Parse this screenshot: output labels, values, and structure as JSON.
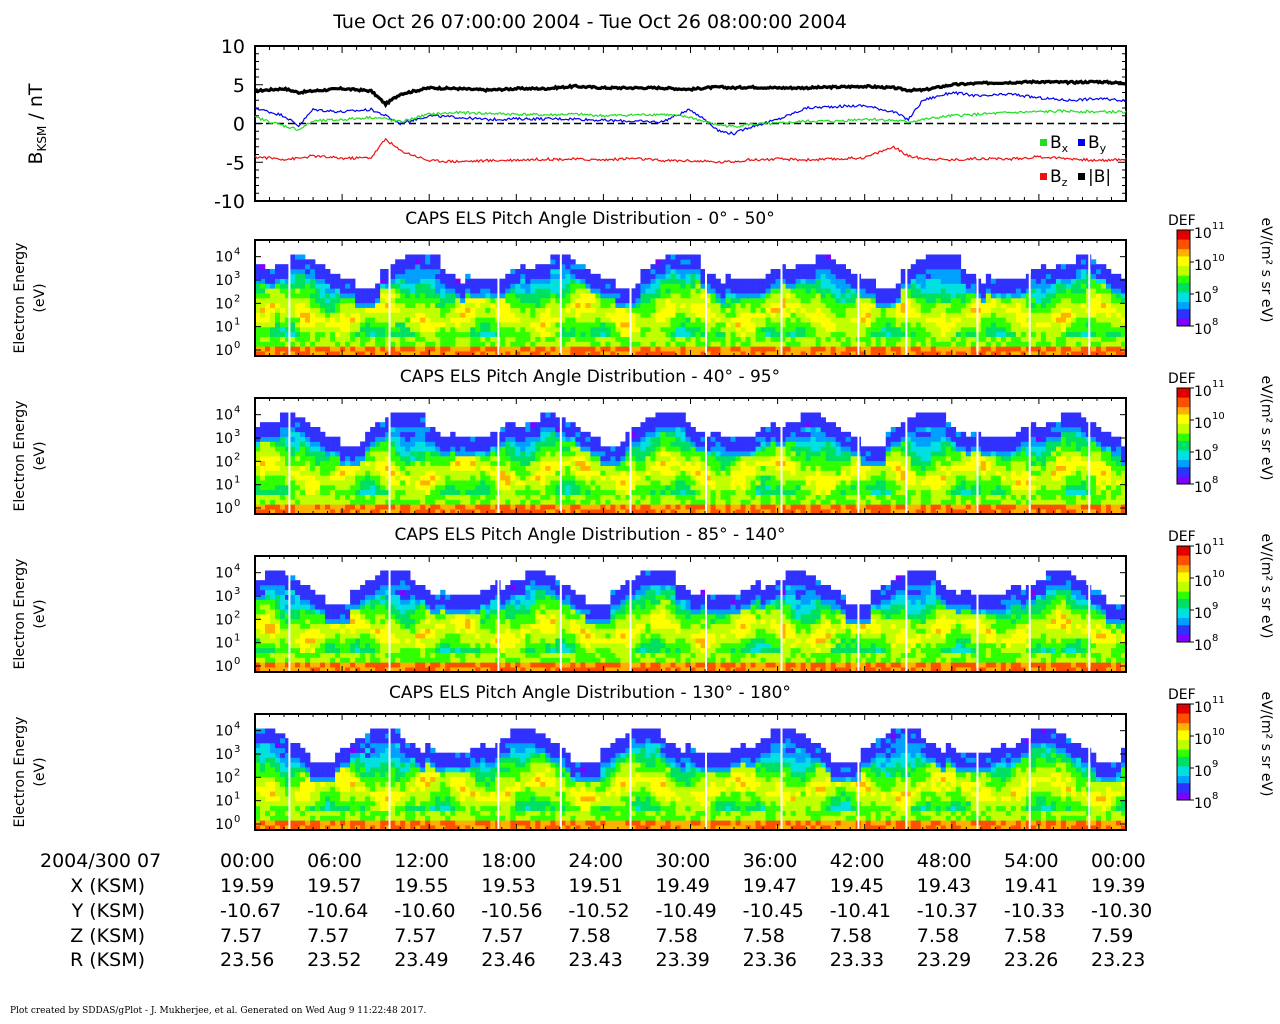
{
  "title": "Tue Oct 26 07:00:00 2004 - Tue Oct 26 08:00:00 2004",
  "footer": "Plot created by SDDAS/gPlot - J. Mukherjee, et al.  Generated on Wed Aug 9 11:22:48 2017.",
  "colors": {
    "bx": "#22dd22",
    "by": "#0000ee",
    "bz": "#ee1111",
    "bmag": "#000000"
  },
  "chart_data": [
    {
      "type": "line",
      "ylabel": "B",
      "ylabel_sub": "KSM",
      "ylabel_unit": " / nT",
      "ylim": [
        -10,
        10
      ],
      "yticks": [
        "10",
        "5",
        "0",
        "-5",
        "-10"
      ],
      "xlim_minutes": [
        0,
        60
      ],
      "zero_line": "dashed",
      "legend": [
        {
          "key": "bx",
          "label": "B",
          "sub": "x"
        },
        {
          "key": "by",
          "label": "B",
          "sub": "y"
        },
        {
          "key": "bz",
          "label": "B",
          "sub": "z"
        },
        {
          "key": "bmag",
          "label": "|B|",
          "sub": ""
        }
      ],
      "legend_position": "bottom-right",
      "x": [
        0,
        2,
        3,
        4,
        6,
        8,
        9,
        10,
        12,
        14,
        16,
        18,
        20,
        22,
        24,
        26,
        28,
        30,
        31,
        32,
        33,
        34,
        36,
        38,
        40,
        42,
        44,
        45,
        46,
        48,
        50,
        52,
        54,
        56,
        58,
        60
      ],
      "series": [
        {
          "key": "bmag",
          "values": [
            4.2,
            4.5,
            4.0,
            4.2,
            4.5,
            4.2,
            2.5,
            3.8,
            4.6,
            4.5,
            4.3,
            4.5,
            4.5,
            4.8,
            4.6,
            4.6,
            4.6,
            4.4,
            4.6,
            4.7,
            4.6,
            4.7,
            4.6,
            4.6,
            4.7,
            4.8,
            4.6,
            4.3,
            4.3,
            5.0,
            5.2,
            5.3,
            5.4,
            5.3,
            5.4,
            5.2
          ]
        },
        {
          "key": "by",
          "values": [
            2.0,
            1.0,
            -0.3,
            1.8,
            1.5,
            1.8,
            1.0,
            0.0,
            1.0,
            0.8,
            0.5,
            0.6,
            0.6,
            0.6,
            0.4,
            0.3,
            0.2,
            1.8,
            0.5,
            -1.0,
            -1.3,
            -0.5,
            0.5,
            2.0,
            2.2,
            2.3,
            1.5,
            0.5,
            3.0,
            4.0,
            3.5,
            3.8,
            3.3,
            3.0,
            3.2,
            3.0
          ]
        },
        {
          "key": "bx",
          "values": [
            0.8,
            -0.3,
            -0.8,
            0.3,
            0.5,
            0.8,
            0.6,
            0.2,
            1.2,
            1.4,
            1.3,
            1.2,
            1.1,
            1.2,
            1.0,
            1.1,
            1.2,
            0.8,
            0.2,
            -0.2,
            -0.4,
            -0.1,
            0.0,
            0.3,
            0.3,
            0.6,
            0.4,
            0.2,
            0.5,
            1.0,
            1.2,
            1.4,
            1.5,
            1.6,
            1.5,
            1.5
          ]
        },
        {
          "key": "bz",
          "values": [
            -4.3,
            -4.6,
            -4.5,
            -4.2,
            -4.5,
            -4.4,
            -2.0,
            -3.5,
            -4.8,
            -4.9,
            -4.8,
            -4.7,
            -4.6,
            -4.6,
            -4.7,
            -4.5,
            -4.8,
            -4.8,
            -4.9,
            -5.0,
            -4.9,
            -4.7,
            -4.6,
            -4.7,
            -4.6,
            -4.4,
            -3.0,
            -4.2,
            -4.5,
            -4.7,
            -4.5,
            -4.6,
            -4.3,
            -4.5,
            -4.8,
            -4.6
          ]
        }
      ]
    },
    {
      "type": "heatmap",
      "title": "CAPS ELS Pitch Angle Distribution - 0° - 50°",
      "ylabel": "Electron Energy",
      "ylabel2": "(eV)",
      "yticks": [
        "10",
        "10",
        "10",
        "10",
        "10"
      ],
      "ytick_exp": [
        "0",
        "1",
        "2",
        "3",
        "4"
      ],
      "cbar_label": "DEF",
      "cbar_unit": "eV/(m² s sr eV)",
      "cbar_ticks": [
        "11",
        "10",
        "9",
        "8"
      ],
      "cbar_range": [
        8,
        11
      ]
    },
    {
      "type": "heatmap",
      "title": "CAPS ELS Pitch Angle Distribution - 40° - 95°",
      "ylabel": "Electron Energy",
      "ylabel2": "(eV)",
      "yticks": [
        "10",
        "10",
        "10",
        "10",
        "10"
      ],
      "ytick_exp": [
        "0",
        "1",
        "2",
        "3",
        "4"
      ],
      "cbar_label": "DEF",
      "cbar_unit": "eV/(m² s sr eV)",
      "cbar_ticks": [
        "11",
        "10",
        "9",
        "8"
      ],
      "cbar_range": [
        8,
        11
      ]
    },
    {
      "type": "heatmap",
      "title": "CAPS ELS Pitch Angle Distribution - 85° - 140°",
      "ylabel": "Electron Energy",
      "ylabel2": "(eV)",
      "yticks": [
        "10",
        "10",
        "10",
        "10",
        "10"
      ],
      "ytick_exp": [
        "0",
        "1",
        "2",
        "3",
        "4"
      ],
      "cbar_label": "DEF",
      "cbar_unit": "eV/(m² s sr eV)",
      "cbar_ticks": [
        "11",
        "10",
        "9",
        "8"
      ],
      "cbar_range": [
        8,
        11
      ]
    },
    {
      "type": "heatmap",
      "title": "CAPS ELS Pitch Angle Distribution - 130° - 180°",
      "ylabel": "Electron Energy",
      "ylabel2": "(eV)",
      "yticks": [
        "10",
        "10",
        "10",
        "10",
        "10"
      ],
      "ytick_exp": [
        "0",
        "1",
        "2",
        "3",
        "4"
      ],
      "cbar_label": "DEF",
      "cbar_unit": "eV/(m² s sr eV)",
      "cbar_ticks": [
        "11",
        "10",
        "9",
        "8"
      ],
      "cbar_range": [
        8,
        11
      ]
    }
  ],
  "ephemeris": {
    "rows": [
      {
        "label": "2004/300 07",
        "values": [
          "00:00",
          "06:00",
          "12:00",
          "18:00",
          "24:00",
          "30:00",
          "36:00",
          "42:00",
          "48:00",
          "54:00",
          "00:00"
        ]
      },
      {
        "label": "X (KSM)",
        "values": [
          "19.59",
          "19.57",
          "19.55",
          "19.53",
          "19.51",
          "19.49",
          "19.47",
          "19.45",
          "19.43",
          "19.41",
          "19.39"
        ]
      },
      {
        "label": "Y (KSM)",
        "values": [
          "-10.67",
          "-10.64",
          "-10.60",
          "-10.56",
          "-10.52",
          "-10.49",
          "-10.45",
          "-10.41",
          "-10.37",
          "-10.33",
          "-10.30"
        ]
      },
      {
        "label": "Z (KSM)",
        "values": [
          "7.57",
          "7.57",
          "7.57",
          "7.57",
          "7.58",
          "7.58",
          "7.58",
          "7.58",
          "7.58",
          "7.58",
          "7.59"
        ]
      },
      {
        "label": "R (KSM)",
        "values": [
          "23.56",
          "23.52",
          "23.49",
          "23.46",
          "23.43",
          "23.39",
          "23.36",
          "23.33",
          "23.29",
          "23.26",
          "23.23"
        ]
      }
    ]
  }
}
